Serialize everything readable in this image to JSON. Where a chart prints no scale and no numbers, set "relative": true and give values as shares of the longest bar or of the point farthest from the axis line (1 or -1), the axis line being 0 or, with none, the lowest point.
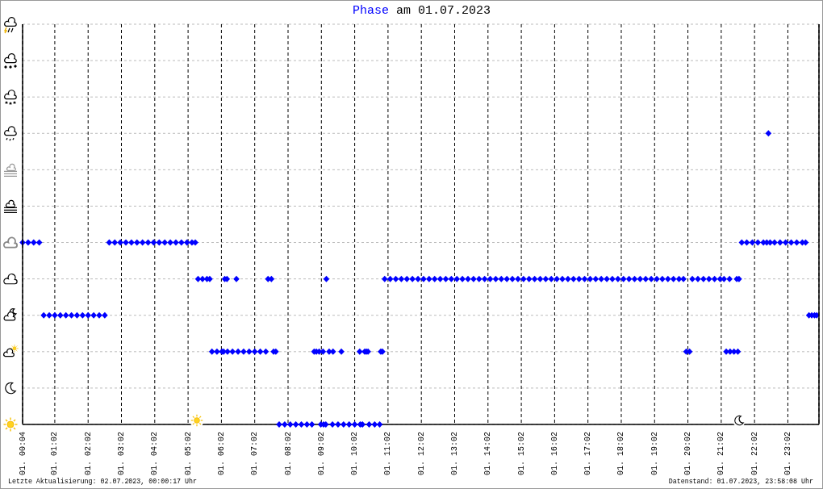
{
  "chart_data": {
    "type": "scatter",
    "title": "am 01.07.2023",
    "relative": true,
    "x": [
      "2023-07-01T00:04",
      "2023-07-01T00:14",
      "2023-07-01T00:24",
      "2023-07-01T00:34",
      "2023-07-01T00:42",
      "2023-07-01T00:52",
      "2023-07-01T01:02",
      "2023-07-01T01:12",
      "2023-07-01T01:22",
      "2023-07-01T01:32",
      "2023-07-01T01:42",
      "2023-07-01T01:52",
      "2023-07-01T02:02",
      "2023-07-01T02:12",
      "2023-07-01T02:22",
      "2023-07-01T02:32",
      "2023-07-01T02:40",
      "2023-07-01T02:50",
      "2023-07-01T03:00",
      "2023-07-01T03:10",
      "2023-07-01T03:20",
      "2023-07-01T03:30",
      "2023-07-01T03:40",
      "2023-07-01T03:50",
      "2023-07-01T04:00",
      "2023-07-01T04:10",
      "2023-07-01T04:20",
      "2023-07-01T04:30",
      "2023-07-01T04:40",
      "2023-07-01T04:50",
      "2023-07-01T05:00",
      "2023-07-01T05:09",
      "2023-07-01T05:15",
      "2023-07-01T05:20",
      "2023-07-01T05:28",
      "2023-07-01T05:36",
      "2023-07-01T05:41",
      "2023-07-01T05:45",
      "2023-07-01T05:54",
      "2023-07-01T06:03",
      "2023-07-01T06:06",
      "2023-07-01T06:08",
      "2023-07-01T06:12",
      "2023-07-01T06:13",
      "2023-07-01T06:22",
      "2023-07-01T06:29",
      "2023-07-01T06:32",
      "2023-07-01T06:42",
      "2023-07-01T06:52",
      "2023-07-01T07:02",
      "2023-07-01T07:12",
      "2023-07-01T07:22",
      "2023-07-01T07:26",
      "2023-07-01T07:32",
      "2023-07-01T07:36",
      "2023-07-01T07:40",
      "2023-07-01T07:46",
      "2023-07-01T07:56",
      "2023-07-01T08:06",
      "2023-07-01T08:16",
      "2023-07-01T08:26",
      "2023-07-01T08:36",
      "2023-07-01T08:45",
      "2023-07-01T08:49",
      "2023-07-01T08:53",
      "2023-07-01T08:58",
      "2023-07-01T09:01",
      "2023-07-01T09:05",
      "2023-07-01T09:06",
      "2023-07-01T09:10",
      "2023-07-01T09:11",
      "2023-07-01T09:16",
      "2023-07-01T09:22",
      "2023-07-01T09:23",
      "2023-07-01T09:32",
      "2023-07-01T09:38",
      "2023-07-01T09:42",
      "2023-07-01T09:52",
      "2023-07-01T10:02",
      "2023-07-01T10:11",
      "2023-07-01T10:12",
      "2023-07-01T10:16",
      "2023-07-01T10:20",
      "2023-07-01T10:23",
      "2023-07-01T10:26",
      "2023-07-01T10:28",
      "2023-07-01T10:38",
      "2023-07-01T10:47",
      "2023-07-01T10:49",
      "2023-07-01T10:52",
      "2023-07-01T10:56",
      "2023-07-01T11:06",
      "2023-07-01T11:16",
      "2023-07-01T11:26",
      "2023-07-01T11:36",
      "2023-07-01T11:46",
      "2023-07-01T11:56",
      "2023-07-01T12:06",
      "2023-07-01T12:16",
      "2023-07-01T12:26",
      "2023-07-01T12:36",
      "2023-07-01T12:46",
      "2023-07-01T12:56",
      "2023-07-01T13:06",
      "2023-07-01T13:16",
      "2023-07-01T13:26",
      "2023-07-01T13:36",
      "2023-07-01T13:46",
      "2023-07-01T13:56",
      "2023-07-01T14:06",
      "2023-07-01T14:16",
      "2023-07-01T14:26",
      "2023-07-01T14:36",
      "2023-07-01T14:46",
      "2023-07-01T14:56",
      "2023-07-01T15:06",
      "2023-07-01T15:16",
      "2023-07-01T15:26",
      "2023-07-01T15:36",
      "2023-07-01T15:46",
      "2023-07-01T15:56",
      "2023-07-01T16:06",
      "2023-07-01T16:16",
      "2023-07-01T16:26",
      "2023-07-01T16:36",
      "2023-07-01T16:46",
      "2023-07-01T16:56",
      "2023-07-01T17:06",
      "2023-07-01T17:16",
      "2023-07-01T17:26",
      "2023-07-01T17:36",
      "2023-07-01T17:46",
      "2023-07-01T17:56",
      "2023-07-01T18:06",
      "2023-07-01T18:16",
      "2023-07-01T18:26",
      "2023-07-01T18:36",
      "2023-07-01T18:46",
      "2023-07-01T18:56",
      "2023-07-01T19:06",
      "2023-07-01T19:16",
      "2023-07-01T19:26",
      "2023-07-01T19:36",
      "2023-07-01T19:46",
      "2023-07-01T19:54",
      "2023-07-01T19:59",
      "2023-07-01T20:05",
      "2023-07-01T20:10",
      "2023-07-01T20:20",
      "2023-07-01T20:30",
      "2023-07-01T20:40",
      "2023-07-01T20:50",
      "2023-07-01T21:00",
      "2023-07-01T21:07",
      "2023-07-01T21:11",
      "2023-07-01T21:17",
      "2023-07-01T21:18",
      "2023-07-01T21:25",
      "2023-07-01T21:30",
      "2023-07-01T21:32",
      "2023-07-01T21:34",
      "2023-07-01T21:39",
      "2023-07-01T21:48",
      "2023-07-01T21:58",
      "2023-07-01T22:08",
      "2023-07-01T22:18",
      "2023-07-01T22:24",
      "2023-07-01T22:27",
      "2023-07-01T22:30",
      "2023-07-01T22:38",
      "2023-07-01T22:48",
      "2023-07-01T22:58",
      "2023-07-01T23:08",
      "2023-07-01T23:18",
      "2023-07-01T23:28",
      "2023-07-01T23:34",
      "2023-07-01T23:40",
      "2023-07-01T23:45",
      "2023-07-01T23:50",
      "2023-07-01T23:54"
    ],
    "series": [
      {
        "name": "Phase",
        "color": "#0000ff",
        "values": [
          0.625,
          0.625,
          0.625,
          0.625,
          0.375,
          0.375,
          0.375,
          0.375,
          0.375,
          0.375,
          0.375,
          0.375,
          0.375,
          0.375,
          0.375,
          0.375,
          0.625,
          0.625,
          0.625,
          0.625,
          0.625,
          0.625,
          0.625,
          0.625,
          0.625,
          0.625,
          0.625,
          0.625,
          0.625,
          0.625,
          0.625,
          0.625,
          0.625,
          0.5,
          0.5,
          0.5,
          0.5,
          0.25,
          0.25,
          0.25,
          0.25,
          0.5,
          0.5,
          0.25,
          0.25,
          0.5,
          0.25,
          0.25,
          0.25,
          0.25,
          0.25,
          0.25,
          0.5,
          0.5,
          0.25,
          0.25,
          0,
          0,
          0,
          0,
          0,
          0,
          0,
          0.25,
          0.25,
          0.25,
          0,
          0.25,
          0,
          0,
          0.5,
          0.25,
          0,
          0.25,
          0,
          0.25,
          0,
          0,
          0,
          0.25,
          0,
          0,
          0.25,
          0.25,
          0.25,
          0,
          0,
          0,
          0.25,
          0.25,
          0.5,
          0.5,
          0.5,
          0.5,
          0.5,
          0.5,
          0.5,
          0.5,
          0.5,
          0.5,
          0.5,
          0.5,
          0.5,
          0.5,
          0.5,
          0.5,
          0.5,
          0.5,
          0.5,
          0.5,
          0.5,
          0.5,
          0.5,
          0.5,
          0.5,
          0.5,
          0.5,
          0.5,
          0.5,
          0.5,
          0.5,
          0.5,
          0.5,
          0.5,
          0.5,
          0.5,
          0.5,
          0.5,
          0.5,
          0.5,
          0.5,
          0.5,
          0.5,
          0.5,
          0.5,
          0.5,
          0.5,
          0.5,
          0.5,
          0.5,
          0.5,
          0.5,
          0.5,
          0.5,
          0.5,
          0.25,
          0.25,
          0.5,
          0.5,
          0.5,
          0.5,
          0.5,
          0.5,
          0.5,
          0.25,
          0.5,
          0.25,
          0.25,
          0.5,
          0.25,
          0.5,
          0.625,
          0.625,
          0.625,
          0.625,
          0.625,
          0.625,
          1,
          0.625,
          0.625,
          0.625,
          0.625,
          0.625,
          0.625,
          0.625,
          0.625,
          0.375,
          0.375,
          0.375,
          0.375
        ]
      }
    ],
    "xlim": [
      "2023-07-01T00:04",
      "2023-07-01T23:58"
    ],
    "xticks": [
      {
        "value": "2023-07-01T00:04",
        "label": "01. 00:04"
      },
      {
        "value": "2023-07-01T01:02",
        "label": "01. 01:02"
      },
      {
        "value": "2023-07-01T02:02",
        "label": "01. 02:02"
      },
      {
        "value": "2023-07-01T03:02",
        "label": "01. 03:02"
      },
      {
        "value": "2023-07-01T04:02",
        "label": "01. 04:02"
      },
      {
        "value": "2023-07-01T05:02",
        "label": "01. 05:02"
      },
      {
        "value": "2023-07-01T06:02",
        "label": "01. 06:02"
      },
      {
        "value": "2023-07-01T07:02",
        "label": "01. 07:02"
      },
      {
        "value": "2023-07-01T08:02",
        "label": "01. 08:02"
      },
      {
        "value": "2023-07-01T09:02",
        "label": "01. 09:02"
      },
      {
        "value": "2023-07-01T10:02",
        "label": "01. 10:02"
      },
      {
        "value": "2023-07-01T11:02",
        "label": "01. 11:02"
      },
      {
        "value": "2023-07-01T12:02",
        "label": "01. 12:02"
      },
      {
        "value": "2023-07-01T13:02",
        "label": "01. 13:02"
      },
      {
        "value": "2023-07-01T14:02",
        "label": "01. 14:02"
      },
      {
        "value": "2023-07-01T15:02",
        "label": "01. 15:02"
      },
      {
        "value": "2023-07-01T16:02",
        "label": "01. 16:02"
      },
      {
        "value": "2023-07-01T17:02",
        "label": "01. 17:02"
      },
      {
        "value": "2023-07-01T18:02",
        "label": "01. 18:02"
      },
      {
        "value": "2023-07-01T19:02",
        "label": "01. 19:02"
      },
      {
        "value": "2023-07-01T20:02",
        "label": "01. 20:02"
      },
      {
        "value": "2023-07-01T21:02",
        "label": "01. 21:02"
      },
      {
        "value": "2023-07-01T22:02",
        "label": "01. 22:02"
      },
      {
        "value": "2023-07-01T23:02",
        "label": "01. 23:02"
      }
    ],
    "grid": true,
    "legend": "top",
    "marker": "diamond",
    "annotations": [
      "Letzte Aktualisierung: 02.07.2023, 00:00:17 Uhr",
      "Datenstand: 01.07.2023, 23:58:08 Uhr"
    ]
  }
}
